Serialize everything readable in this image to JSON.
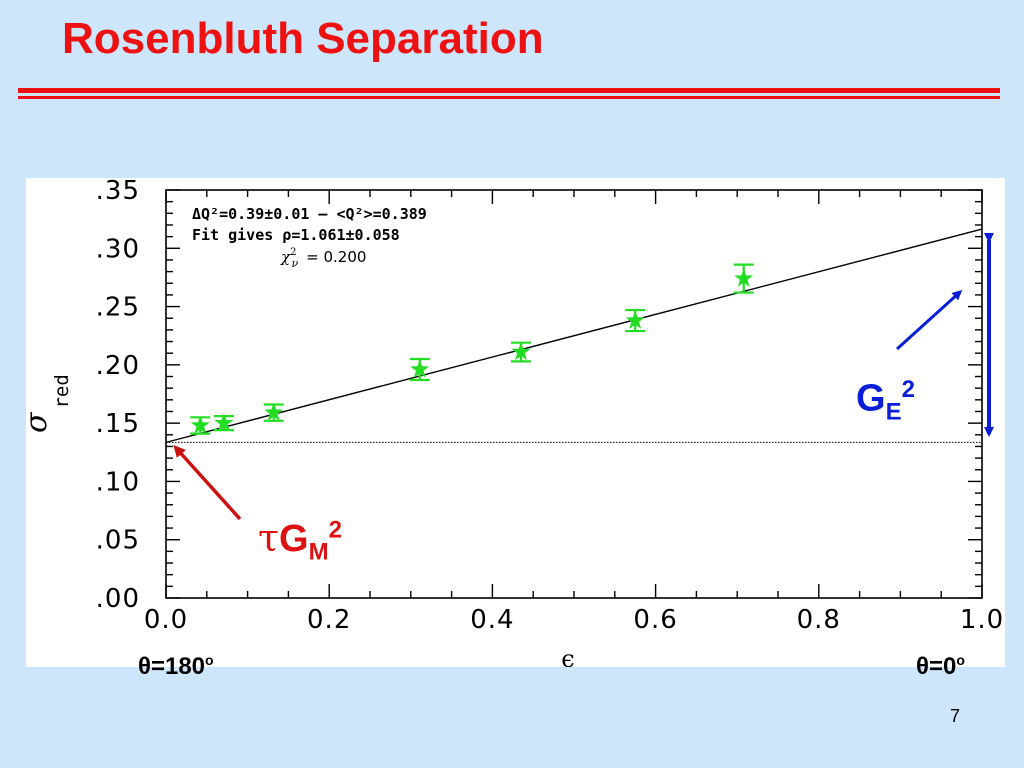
{
  "slide": {
    "title": "Rosenbluth Separation",
    "page_number": "7",
    "theta_left": "θ=180",
    "theta_right": "θ=0",
    "degree": "o"
  },
  "annotations": {
    "ge_label": "G",
    "ge_sub": "E",
    "ge_sup": "2",
    "gm_tau": "τ",
    "gm_label": "G",
    "gm_sub": "M",
    "gm_sup": "2",
    "ge_color": "#0a1ed8",
    "gm_color": "#dd1111"
  },
  "chart_data": {
    "type": "scatter",
    "xlabel": "ϵ",
    "ylabel": "σ",
    "ylabel_sub": "red",
    "xlim": [
      0.0,
      1.0
    ],
    "ylim": [
      0.0,
      0.35
    ],
    "xticks": [
      0.0,
      0.2,
      0.4,
      0.6,
      0.8,
      1.0
    ],
    "xtick_labels": [
      "0.0",
      "0.2",
      "0.4",
      "0.6",
      "0.8",
      "1.0"
    ],
    "yticks": [
      0.0,
      0.05,
      0.1,
      0.15,
      0.2,
      0.25,
      0.3,
      0.35
    ],
    "ytick_labels": [
      ".00",
      ".05",
      ".10",
      ".15",
      ".20",
      ".25",
      ".30",
      ".35"
    ],
    "annotations": {
      "line1": "ΔQ²=0.39±0.01  –  <Q²>=0.389",
      "line2": "Fit gives ρ=1.061±0.058",
      "line3_chi": "χ",
      "line3_sup": "2",
      "line3_sub": "ν",
      "line3_value": "=  0.200"
    },
    "series": [
      {
        "marker": "star",
        "color": "#22dd22",
        "x": [
          0.042,
          0.071,
          0.132,
          0.311,
          0.435,
          0.575,
          0.708
        ],
        "y": [
          0.148,
          0.15,
          0.159,
          0.196,
          0.211,
          0.238,
          0.274
        ],
        "err": [
          0.007,
          0.006,
          0.007,
          0.009,
          0.008,
          0.009,
          0.012
        ]
      }
    ],
    "fit_line": {
      "x": [
        0.0,
        1.0
      ],
      "y": [
        0.1335,
        0.3165
      ]
    },
    "intercept_line": {
      "y": 0.1335
    },
    "grid": false,
    "legend": "none"
  }
}
